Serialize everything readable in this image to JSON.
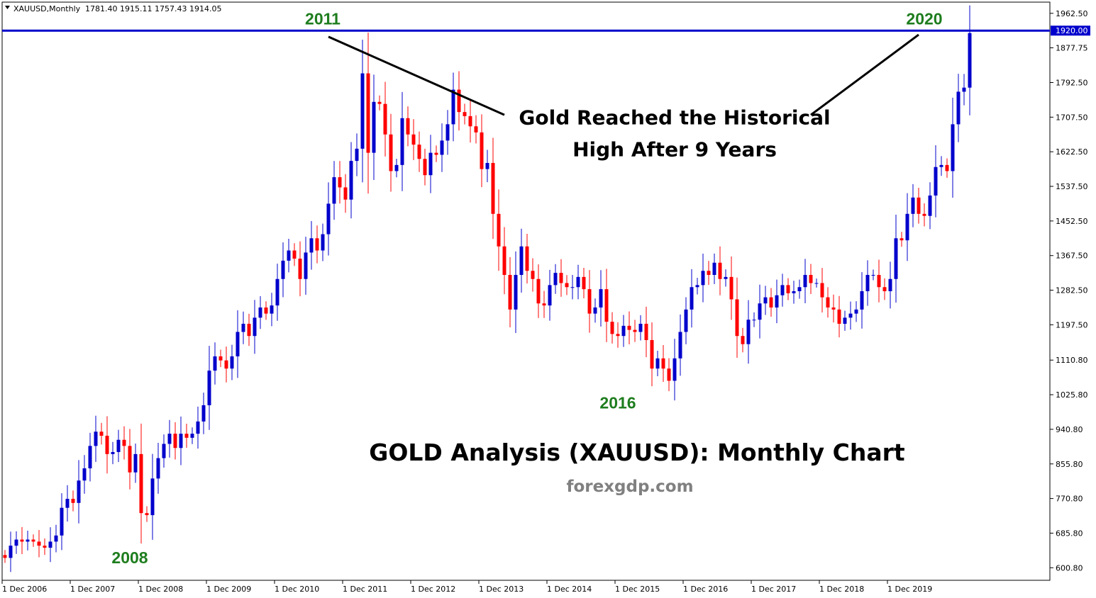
{
  "header": {
    "symbol": "XAUUSD,Monthly",
    "ohlc": "1781.40 1915.11 1757.43 1914.05"
  },
  "colors": {
    "up": "#0000cc",
    "down": "#ff0000",
    "level": "#0000cc",
    "year_label": "#1e7d1e"
  },
  "chart_data": {
    "type": "candlestick",
    "title": "GOLD Analysis (XAUUSD): Monthly Chart",
    "source": "forexgdp.com",
    "ylim": [
      570,
      1990
    ],
    "y_ticks": [
      "1962.50",
      "1877.75",
      "1792.50",
      "1707.50",
      "1622.50",
      "1537.50",
      "1452.50",
      "1367.50",
      "1282.50",
      "1197.50",
      "1110.80",
      "1025.80",
      "940.80",
      "855.80",
      "770.80",
      "685.80",
      "600.80"
    ],
    "x_ticks": [
      "1 Dec 2006",
      "1 Dec 2007",
      "1 Dec 2008",
      "1 Dec 2009",
      "1 Dec 2010",
      "1 Dec 2011",
      "1 Dec 2012",
      "1 Dec 2013",
      "1 Dec 2014",
      "1 Dec 2015",
      "1 Dec 2016",
      "1 Dec 2017",
      "1 Dec 2018",
      "1 Dec 2019"
    ],
    "level_line": {
      "value": 1920.0,
      "label": "1920.00"
    },
    "year_labels": [
      {
        "text": "2008",
        "index": 22,
        "price": 650,
        "pos": "below"
      },
      {
        "text": "2011",
        "index": 56,
        "price": 1935,
        "pos": "above"
      },
      {
        "text": "2016",
        "index": 108,
        "price": 1030,
        "pos": "below"
      },
      {
        "text": "2020",
        "index": 162,
        "price": 1935,
        "pos": "above"
      }
    ],
    "annotation": {
      "lines": [
        "Gold Reached the Historical",
        "High After 9 Years"
      ],
      "anchor_index": 118,
      "anchor_price": 1690,
      "arrow_from_left": {
        "index": 57,
        "price": 1905
      },
      "arrow_from_right": {
        "index": 161,
        "price": 1910
      },
      "arrow_to_left": {
        "index": 88,
        "price": 1713
      },
      "arrow_to_right": {
        "index": 142,
        "price": 1713
      }
    },
    "first_open": 632.0,
    "closes": [
      625,
      655,
      670,
      665,
      670,
      665,
      655,
      650,
      665,
      680,
      748,
      770,
      760,
      815,
      845,
      900,
      935,
      925,
      880,
      885,
      915,
      900,
      835,
      880,
      735,
      730,
      820,
      870,
      905,
      930,
      895,
      930,
      920,
      930,
      960,
      1000,
      1085,
      1120,
      1110,
      1090,
      1120,
      1180,
      1200,
      1170,
      1215,
      1240,
      1225,
      1245,
      1310,
      1355,
      1380,
      1360,
      1310,
      1375,
      1410,
      1380,
      1420,
      1495,
      1560,
      1535,
      1505,
      1600,
      1630,
      1815,
      1620,
      1745,
      1740,
      1665,
      1575,
      1590,
      1705,
      1665,
      1640,
      1605,
      1565,
      1620,
      1615,
      1650,
      1690,
      1775,
      1720,
      1710,
      1685,
      1670,
      1580,
      1595,
      1470,
      1390,
      1320,
      1235,
      1320,
      1390,
      1330,
      1310,
      1250,
      1245,
      1295,
      1325,
      1300,
      1290,
      1290,
      1315,
      1285,
      1225,
      1240,
      1285,
      1205,
      1175,
      1170,
      1195,
      1185,
      1180,
      1200,
      1160,
      1090,
      1115,
      1090,
      1060,
      1115,
      1180,
      1235,
      1290,
      1295,
      1330,
      1320,
      1350,
      1310,
      1315,
      1260,
      1170,
      1150,
      1210,
      1210,
      1250,
      1265,
      1240,
      1270,
      1295,
      1275,
      1280,
      1290,
      1320,
      1300,
      1300,
      1265,
      1240,
      1235,
      1200,
      1215,
      1225,
      1235,
      1280,
      1320,
      1320,
      1290,
      1280,
      1310,
      1410,
      1405,
      1470,
      1510,
      1470,
      1465,
      1515,
      1585,
      1590,
      1575,
      1690,
      1770,
      1780,
      1914.05
    ]
  }
}
